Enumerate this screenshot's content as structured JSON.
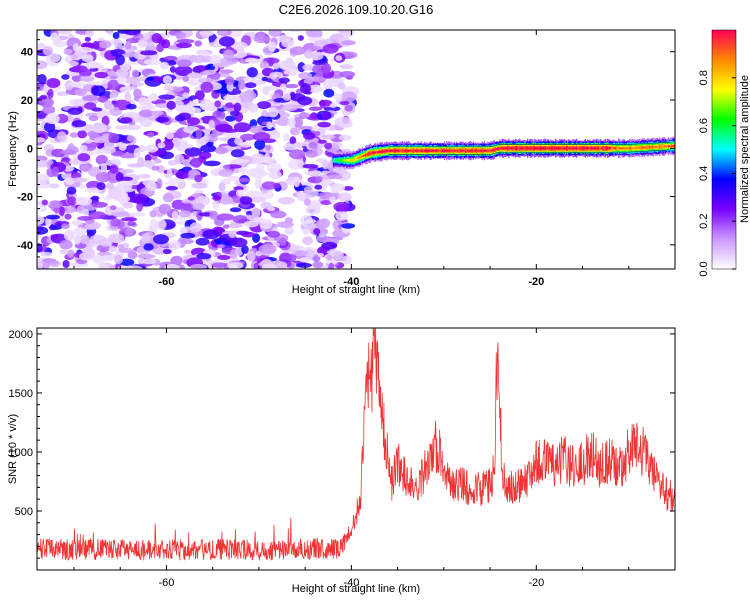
{
  "figure": {
    "title": "C2E6.2026.109.10.20.G16"
  },
  "chart_data": [
    {
      "type": "heatmap",
      "xlabel": "Height of straight line (km)",
      "ylabel": "Frequency (Hz)",
      "xlim": [
        -74,
        -5
      ],
      "ylim": [
        -50,
        49
      ],
      "xticks": [
        -60,
        -40,
        -20
      ],
      "yticks": [
        -40,
        -20,
        0,
        20,
        40
      ],
      "colorbar": {
        "label": "Normalized spectral amplitude",
        "range": [
          0,
          1
        ],
        "ticks": [
          0.0,
          0.2,
          0.4,
          0.6,
          0.8
        ],
        "colors": [
          "#ffffff",
          "#cc99ff",
          "#7a00ff",
          "#0000ff",
          "#00ffff",
          "#00ff00",
          "#ffff00",
          "#ff8800",
          "#ff0055"
        ]
      },
      "description_bands": [
        {
          "x_range": [
            -74,
            -41
          ],
          "pattern": "noise",
          "amplitude_range": [
            0.0,
            0.3
          ]
        },
        {
          "x_range": [
            -41,
            -5
          ],
          "pattern": "narrow band near 0 Hz",
          "amplitude_range": [
            0.2,
            1.0
          ]
        }
      ],
      "ridge": {
        "x": [
          -42,
          -40,
          -38,
          -36,
          -30,
          -25,
          -24,
          -20,
          -15,
          -10,
          -5
        ],
        "y": [
          -5,
          -5,
          -2,
          -1,
          -1,
          -1,
          0,
          0,
          0,
          0,
          1
        ]
      }
    },
    {
      "type": "line",
      "xlabel": "Height of straight line (km)",
      "ylabel": "SNR (10 * v/v)",
      "xlim": [
        -74,
        -5
      ],
      "ylim": [
        0,
        2050
      ],
      "xticks": [
        -60,
        -40,
        -20
      ],
      "yticks": [
        500,
        1000,
        1500,
        2000
      ],
      "color": "#ee3333",
      "series": [
        {
          "x": [
            -74,
            -70,
            -66,
            -62,
            -58,
            -54,
            -50,
            -46,
            -43,
            -41,
            -40,
            -39,
            -38.3,
            -38,
            -37.6,
            -37.2,
            -36.8,
            -36.3,
            -35.8,
            -35,
            -34,
            -33,
            -32,
            -31,
            -30.5,
            -30,
            -29,
            -28,
            -27,
            -26,
            -25,
            -24.5,
            -24.2,
            -24,
            -23.7,
            -23.3,
            -22.5,
            -21,
            -20,
            -19,
            -18,
            -17,
            -16,
            -15,
            -14,
            -13,
            -12,
            -11,
            -10,
            -9,
            -8,
            -7,
            -6,
            -5
          ],
          "y": [
            180,
            170,
            175,
            170,
            170,
            175,
            170,
            175,
            180,
            190,
            340,
            600,
            1750,
            1500,
            1850,
            1650,
            1350,
            1150,
            700,
            900,
            780,
            700,
            850,
            1080,
            1000,
            800,
            700,
            750,
            650,
            700,
            720,
            900,
            2000,
            1500,
            900,
            650,
            700,
            760,
            950,
            900,
            870,
            950,
            870,
            900,
            1000,
            870,
            950,
            850,
            1000,
            1050,
            950,
            750,
            650,
            600
          ]
        }
      ]
    }
  ]
}
